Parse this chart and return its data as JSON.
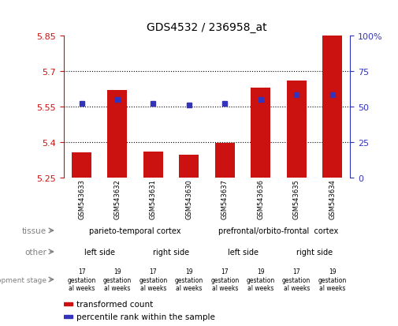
{
  "title": "GDS4532 / 236958_at",
  "samples": [
    "GSM543633",
    "GSM543632",
    "GSM543631",
    "GSM543630",
    "GSM543637",
    "GSM543636",
    "GSM543635",
    "GSM543634"
  ],
  "bar_values": [
    5.355,
    5.62,
    5.36,
    5.345,
    5.395,
    5.63,
    5.66,
    5.865
  ],
  "bar_base": 5.25,
  "percentile_values": [
    52,
    55,
    52,
    51,
    52,
    55,
    58,
    58
  ],
  "ylim_left": [
    5.25,
    5.85
  ],
  "ylim_right": [
    0,
    100
  ],
  "yticks_left": [
    5.25,
    5.4,
    5.55,
    5.7,
    5.85
  ],
  "ytick_labels_left": [
    "5.25",
    "5.4",
    "5.55",
    "5.7",
    "5.85"
  ],
  "yticks_right": [
    0,
    25,
    50,
    75,
    100
  ],
  "ytick_labels_right": [
    "0",
    "25",
    "50",
    "75",
    "100%"
  ],
  "hlines": [
    5.4,
    5.55,
    5.7
  ],
  "bar_color": "#CC1111",
  "percentile_color": "#3333BB",
  "tissue_groups": [
    {
      "text": "parieto-temporal cortex",
      "start": 0,
      "end": 4,
      "color": "#AADDAA"
    },
    {
      "text": "prefrontal/orbito-frontal  cortex",
      "start": 4,
      "end": 8,
      "color": "#44BB44"
    }
  ],
  "tissue_label": "tissue",
  "other_groups": [
    {
      "text": "left side",
      "start": 0,
      "end": 2,
      "color": "#BBBBEE"
    },
    {
      "text": "right side",
      "start": 2,
      "end": 4,
      "color": "#9999CC"
    },
    {
      "text": "left side",
      "start": 4,
      "end": 6,
      "color": "#BBBBEE"
    },
    {
      "text": "right side",
      "start": 6,
      "end": 8,
      "color": "#9999CC"
    }
  ],
  "other_label": "other",
  "dev_groups": [
    {
      "text": "17\ngestation\nal weeks",
      "start": 0,
      "end": 1,
      "color": "#FFBBBB"
    },
    {
      "text": "19\ngestation\nal weeks",
      "start": 1,
      "end": 2,
      "color": "#FF8888"
    },
    {
      "text": "17\ngestation\nal weeks",
      "start": 2,
      "end": 3,
      "color": "#FFBBBB"
    },
    {
      "text": "19\ngestation\nal weeks",
      "start": 3,
      "end": 4,
      "color": "#FF8888"
    },
    {
      "text": "17\ngestation\nal weeks",
      "start": 4,
      "end": 5,
      "color": "#FFBBBB"
    },
    {
      "text": "19\ngestation\nal weeks",
      "start": 5,
      "end": 6,
      "color": "#FF8888"
    },
    {
      "text": "17\ngestation\nal weeks",
      "start": 6,
      "end": 7,
      "color": "#FFBBBB"
    },
    {
      "text": "19\ngestation\nal weeks",
      "start": 7,
      "end": 8,
      "color": "#FF8888"
    }
  ],
  "dev_label": "development stage",
  "legend_items": [
    {
      "label": "transformed count",
      "color": "#CC1111"
    },
    {
      "label": "percentile rank within the sample",
      "color": "#3333BB"
    }
  ],
  "sample_box_color": "#CCCCCC",
  "left_tick_color": "#CC1111",
  "right_tick_color": "#3333BB"
}
